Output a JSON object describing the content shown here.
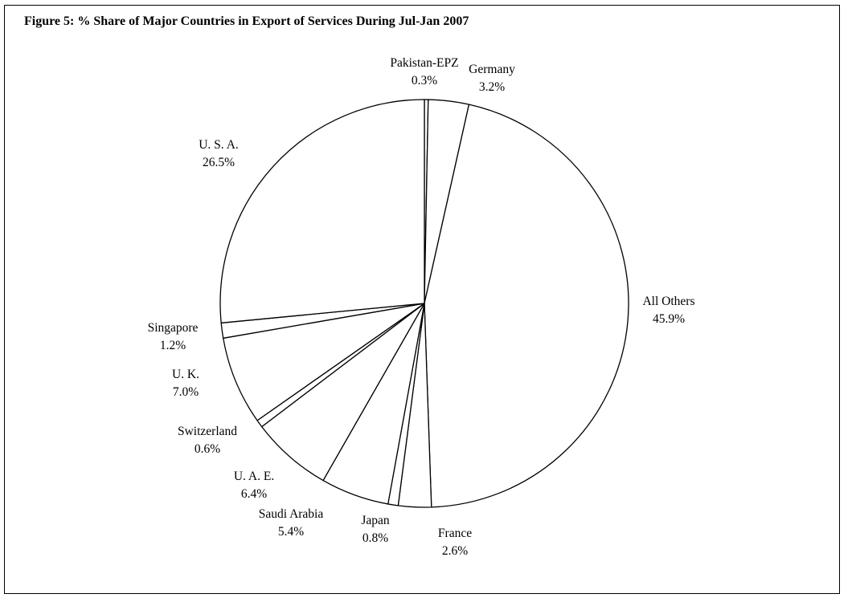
{
  "chart_data": {
    "type": "pie",
    "title": "Figure 5: % Share of Major Countries in Export of Services During  Jul-Jan  2007",
    "slices": [
      {
        "label": "Pakistan-EPZ",
        "value": 0.3,
        "display": "0.3%"
      },
      {
        "label": "Germany",
        "value": 3.2,
        "display": "3.2%"
      },
      {
        "label": "All Others",
        "value": 45.9,
        "display": "45.9%"
      },
      {
        "label": "France",
        "value": 2.6,
        "display": "2.6%"
      },
      {
        "label": "Japan",
        "value": 0.8,
        "display": "0.8%"
      },
      {
        "label": "Saudi Arabia",
        "value": 5.4,
        "display": "5.4%"
      },
      {
        "label": "U. A. E.",
        "value": 6.4,
        "display": "6.4%"
      },
      {
        "label": "Switzerland",
        "value": 0.6,
        "display": "0.6%"
      },
      {
        "label": "U. K.",
        "value": 7.0,
        "display": "7.0%"
      },
      {
        "label": "Singapore",
        "value": 1.2,
        "display": "1.2%"
      },
      {
        "label": "U. S. A.",
        "value": 26.5,
        "display": "26.5%"
      }
    ],
    "fill": "#ffffff",
    "stroke": "#000000"
  }
}
